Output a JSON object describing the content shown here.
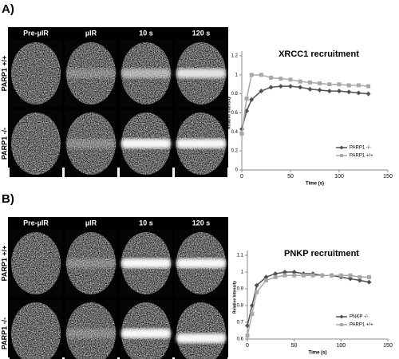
{
  "panels": [
    {
      "label": "A)",
      "columns": [
        "Pre-µIR",
        "µIR",
        "10 s",
        "120 s"
      ],
      "rows": [
        "PARP1 +/+",
        "PARP1 -/-"
      ]
    },
    {
      "label": "B)",
      "columns": [
        "Pre-µIR",
        "µIR",
        "10 s",
        "120 s"
      ],
      "rows": [
        "PARP1 +/+",
        "PARP1 -/-"
      ]
    }
  ],
  "chart_data": [
    {
      "type": "line",
      "title": "XRCC1 recruitment",
      "x_label": "Time (s)",
      "y_label": "Relative Intensity",
      "x": [
        0,
        5,
        10,
        20,
        30,
        40,
        50,
        60,
        70,
        80,
        90,
        100,
        110,
        120,
        130
      ],
      "series": [
        {
          "name": "PARP1 -/-",
          "color": "#505050",
          "values": [
            0.43,
            0.62,
            0.74,
            0.83,
            0.87,
            0.88,
            0.88,
            0.87,
            0.85,
            0.84,
            0.83,
            0.83,
            0.82,
            0.81,
            0.8
          ]
        },
        {
          "name": "PARP1 +/+",
          "color": "#a8a8a8",
          "values": [
            0.38,
            0.75,
            1.0,
            1.0,
            0.97,
            0.96,
            0.95,
            0.93,
            0.92,
            0.91,
            0.9,
            0.9,
            0.89,
            0.89,
            0.88
          ]
        }
      ],
      "xlim": [
        0,
        150
      ],
      "xticks": [
        0,
        50,
        100,
        150
      ],
      "ylim": [
        0,
        1.2
      ],
      "yticks": [
        0,
        0.2,
        0.4,
        0.6,
        0.8,
        1,
        1.2
      ],
      "legend": "lower right"
    },
    {
      "type": "line",
      "title": "PNKP recruitment",
      "x_label": "Time (s)",
      "y_label": "Relative Intensity",
      "x": [
        0,
        5,
        10,
        20,
        30,
        40,
        50,
        60,
        70,
        80,
        90,
        100,
        110,
        120,
        130
      ],
      "series": [
        {
          "name": "PNKP -/-",
          "color": "#505050",
          "values": [
            0.68,
            0.8,
            0.92,
            0.97,
            0.99,
            1.0,
            1.0,
            0.99,
            0.99,
            0.98,
            0.98,
            0.97,
            0.96,
            0.95,
            0.94
          ]
        },
        {
          "name": "PARP1 +/+",
          "color": "#a8a8a8",
          "values": [
            0.62,
            0.75,
            0.88,
            0.95,
            0.97,
            0.98,
            0.98,
            0.98,
            0.98,
            0.98,
            0.98,
            0.98,
            0.98,
            0.97,
            0.97
          ]
        }
      ],
      "xlim": [
        0,
        150
      ],
      "xticks": [
        0,
        50,
        100,
        150
      ],
      "ylim": [
        0.6,
        1.1
      ],
      "yticks": [
        0.6,
        0.7,
        0.8,
        0.9,
        1,
        1.1
      ],
      "legend": "lower right"
    }
  ]
}
